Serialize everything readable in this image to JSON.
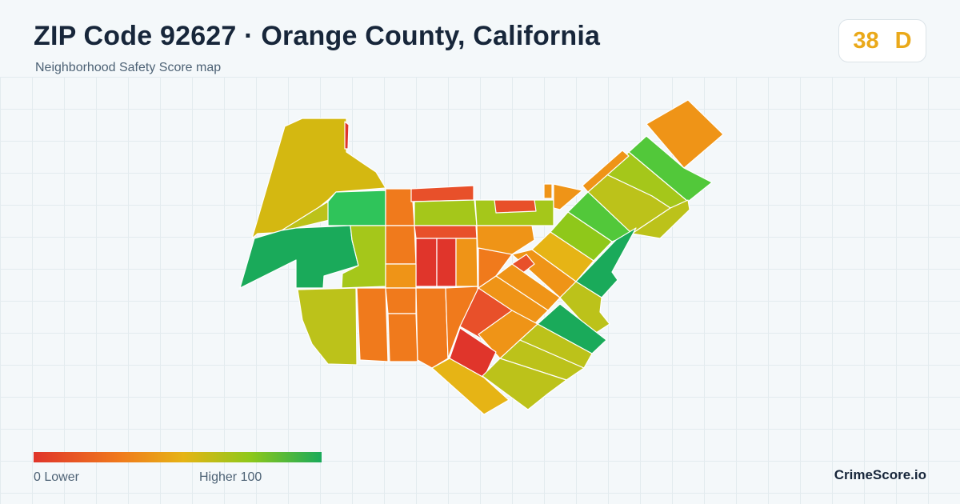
{
  "header": {
    "title": "ZIP Code 92627 · Orange County, California",
    "subtitle": "Neighborhood Safety Score map"
  },
  "score": {
    "value": "38",
    "grade": "D",
    "color": "#eaa91a"
  },
  "legend": {
    "low_label": "0  Lower",
    "high_label": "Higher  100",
    "min": 0,
    "max": 100
  },
  "brand": "CrimeScore.io",
  "map": {
    "colors": {
      "red": "#e0352b",
      "red_orange": "#e8502a",
      "orange": "#f07a1c",
      "orange_amber": "#ef9417",
      "amber": "#e6b415",
      "yellow_olive": "#d4b811",
      "olive": "#bcc21a",
      "yellow_green": "#a5c71a",
      "lime": "#8fc81a",
      "green_light": "#52c83a",
      "green_mid": "#2fc45a",
      "green_dark": "#1aaa5a"
    }
  }
}
